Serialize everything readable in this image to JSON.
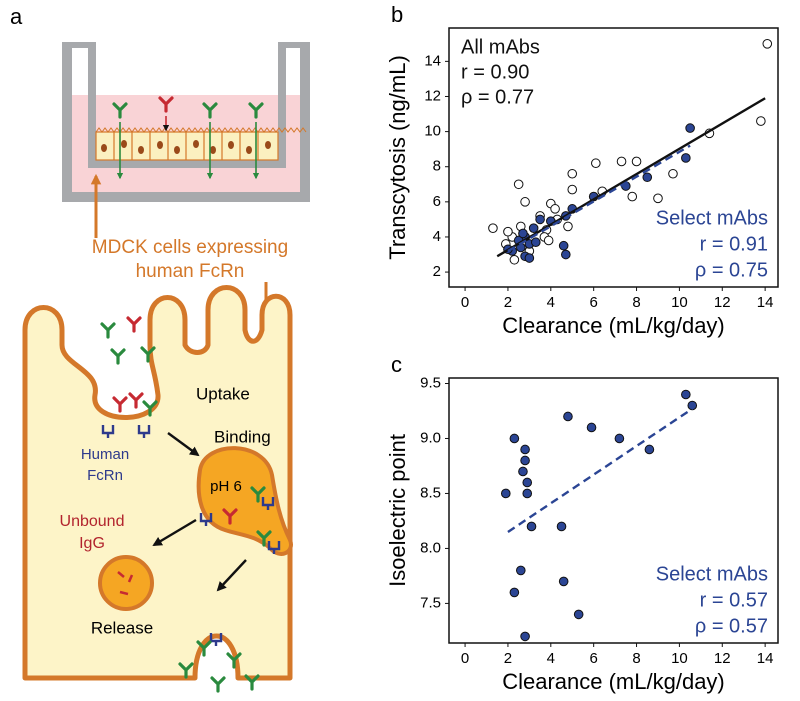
{
  "diagram": {
    "panel": "a",
    "cell_label": [
      "MDCK cells expressing",
      "human FcRn"
    ],
    "uptake": "Uptake",
    "binding": "Binding",
    "receptor": [
      "Human",
      "FcRn"
    ],
    "ph": "pH 6",
    "unbound": [
      "Unbound",
      "IgG"
    ],
    "release": "Release"
  },
  "chart_data": [
    {
      "type": "scatter",
      "panel": "b",
      "x_label": "Clearance (mL/kg/day)",
      "y_label": "Transcytosis (ng/mL)",
      "xlim": [
        -0.75,
        14.6
      ],
      "ylim": [
        1.15,
        15.9
      ],
      "xticks": [
        0,
        2,
        4,
        6,
        8,
        10,
        12,
        14
      ],
      "yticks": [
        2,
        4,
        6,
        8,
        10,
        12,
        14
      ],
      "series": [
        {
          "name": "All mAbs",
          "stats": [
            "r = 0.90",
            "ρ = 0.77"
          ],
          "color": "#111111",
          "marker": "open",
          "label_corner": "top-left",
          "x": [
            14.1,
            13.8,
            11.4,
            9.7,
            7.3,
            8.0,
            6.1,
            5.0,
            7.8,
            9.0,
            6.4,
            5.0,
            2.5,
            4.0,
            2.8,
            1.3,
            3.5,
            4.2,
            4.3,
            3.8,
            2.6,
            2.2,
            1.9,
            2.3,
            3.7,
            4.8,
            3.0,
            2.0,
            3.9
          ],
          "y": [
            15.0,
            10.6,
            9.9,
            7.6,
            8.3,
            8.3,
            8.2,
            7.6,
            6.3,
            6.2,
            6.6,
            6.7,
            7.0,
            5.9,
            6.0,
            4.5,
            5.2,
            5.6,
            5.0,
            4.4,
            4.6,
            4.0,
            3.6,
            2.7,
            4.0,
            4.6,
            3.2,
            4.3,
            3.8
          ],
          "fit": {
            "x": [
              1.5,
              14
            ],
            "y": [
              2.9,
              11.9
            ],
            "dash": false
          }
        },
        {
          "name": "Select mAbs",
          "stats": [
            "r = 0.91",
            "ρ = 0.75"
          ],
          "color": "#2b4594",
          "marker": "filled",
          "label_corner": "bottom-right",
          "x": [
            10.5,
            10.3,
            8.5,
            7.5,
            6.0,
            5.0,
            4.7,
            4.0,
            3.5,
            3.2,
            2.8,
            2.6,
            2.8,
            3.0,
            2.5,
            2.2,
            2.0,
            3.0,
            4.6,
            4.7,
            3.3,
            2.7
          ],
          "y": [
            10.2,
            8.5,
            7.4,
            6.9,
            6.3,
            5.6,
            5.2,
            4.9,
            5.0,
            4.5,
            4.0,
            3.4,
            2.9,
            2.8,
            3.8,
            3.2,
            3.3,
            3.6,
            3.5,
            3.0,
            3.7,
            4.2
          ],
          "fit": {
            "x": [
              2,
              10.5
            ],
            "y": [
              3.2,
              9.2
            ],
            "dash": true
          }
        }
      ]
    },
    {
      "type": "scatter",
      "panel": "c",
      "x_label": "Clearance (mL/kg/day)",
      "y_label": "Isoelectric point",
      "xlim": [
        -0.75,
        14.6
      ],
      "ylim": [
        7.14,
        9.55
      ],
      "xticks": [
        0,
        2,
        4,
        6,
        8,
        10,
        12,
        14
      ],
      "yticks": [
        7.5,
        {
          "value": 8,
          "label": "8.0"
        },
        8.5,
        {
          "value": 9,
          "label": "9.0"
        },
        9.5
      ],
      "series": [
        {
          "name": "Select mAbs",
          "stats": [
            "r = 0.57",
            "ρ = 0.57"
          ],
          "color": "#2b4594",
          "marker": "filled",
          "label_corner": "bottom-right",
          "x": [
            10.3,
            10.6,
            4.8,
            5.9,
            7.2,
            8.6,
            2.3,
            2.8,
            2.8,
            2.7,
            2.9,
            1.9,
            2.9,
            3.1,
            4.5,
            2.6,
            4.6,
            2.3,
            5.3,
            2.8
          ],
          "y": [
            9.4,
            9.3,
            9.2,
            9.1,
            9.0,
            8.9,
            9.0,
            8.9,
            8.8,
            8.7,
            8.6,
            8.5,
            8.5,
            8.2,
            8.2,
            7.8,
            7.7,
            7.6,
            7.4,
            7.2
          ],
          "fit": {
            "x": [
              2,
              10.6
            ],
            "y": [
              8.15,
              9.27
            ],
            "dash": true
          }
        }
      ]
    }
  ]
}
